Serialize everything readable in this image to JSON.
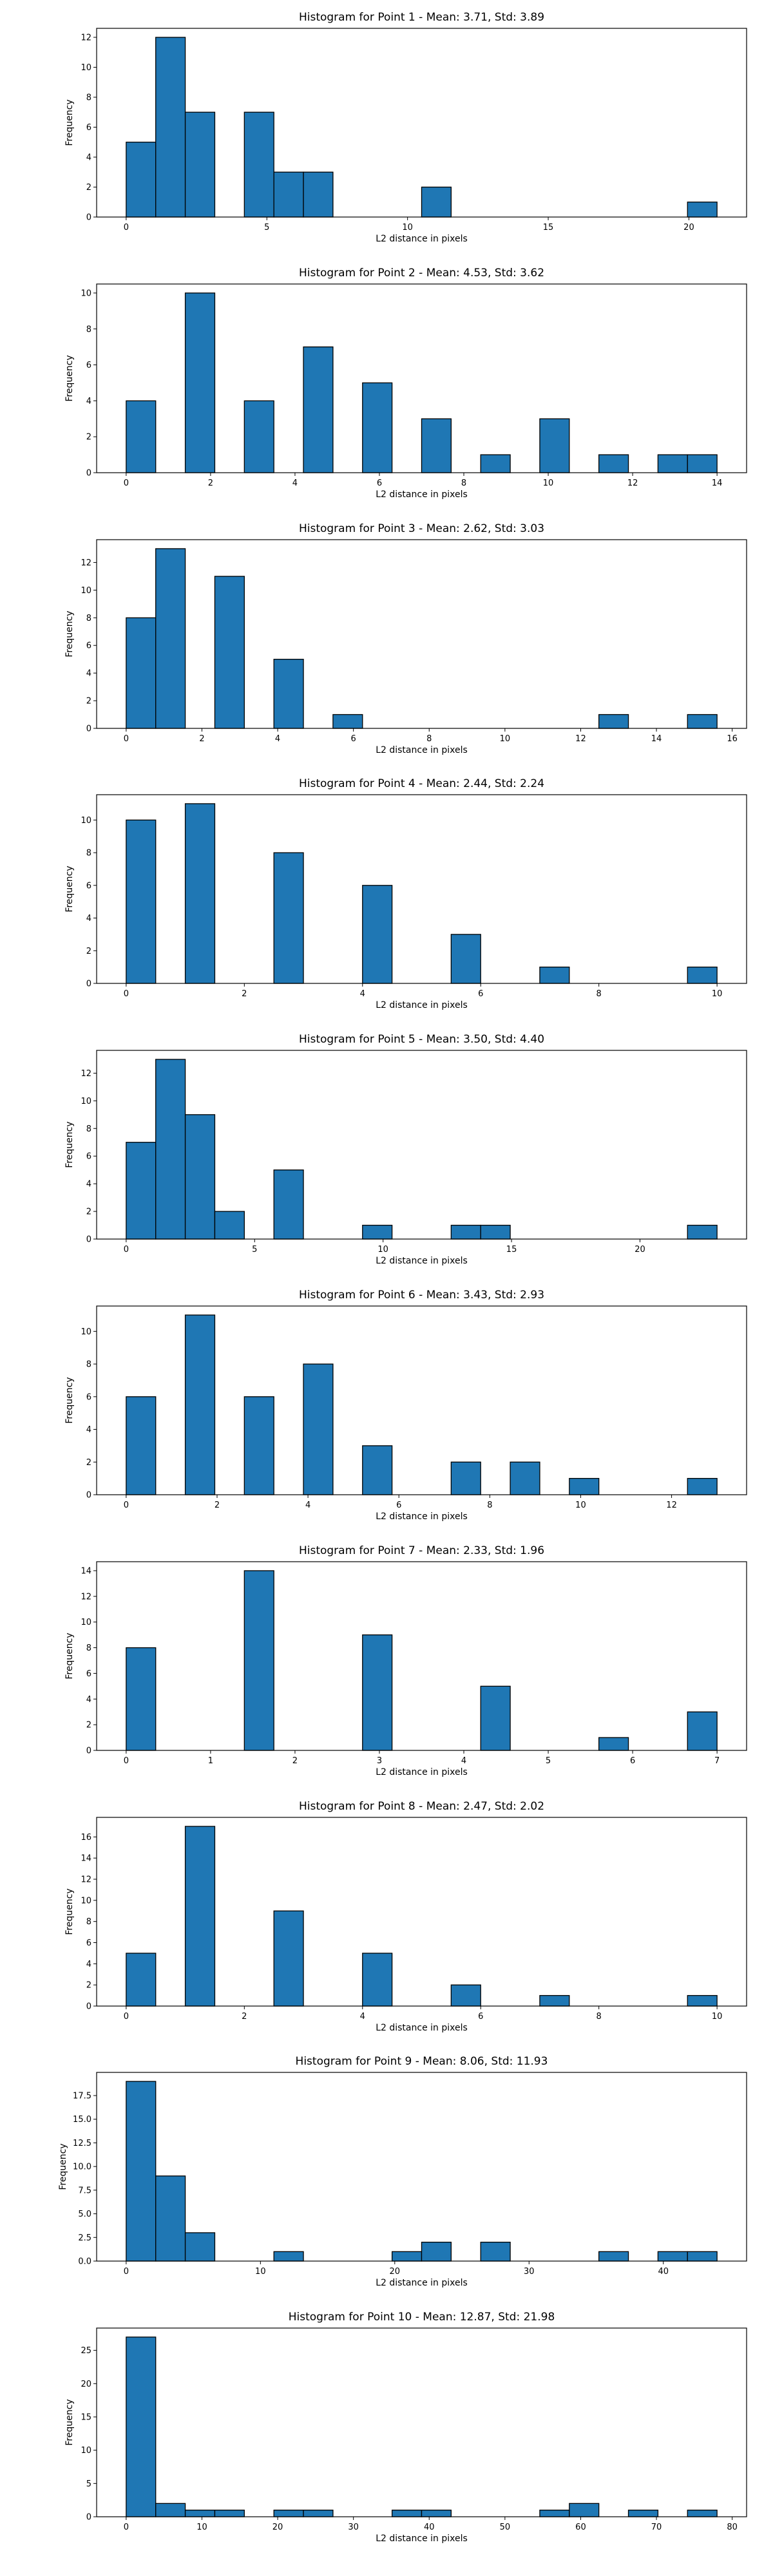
{
  "colors": {
    "bar_fill": "#1f77b4",
    "bar_edge": "#000000",
    "axes": "#000000"
  },
  "chart_data": [
    {
      "type": "bar",
      "title": "Histogram for Point 1 - Mean: 3.71, Std: 3.89",
      "xlabel": "L2 distance in pixels",
      "ylabel": "Frequency",
      "xlim": [
        -1.05,
        22.05
      ],
      "ylim": [
        0,
        12.6
      ],
      "xticks": [
        0,
        5,
        10,
        15,
        20
      ],
      "yticks": [
        0,
        2,
        4,
        6,
        8,
        10,
        12
      ],
      "bins": [
        {
          "x0": 0,
          "x1": 1.05,
          "count": 5
        },
        {
          "x0": 1.05,
          "x1": 2.1,
          "count": 12
        },
        {
          "x0": 2.1,
          "x1": 3.15,
          "count": 7
        },
        {
          "x0": 4.2,
          "x1": 5.25,
          "count": 7
        },
        {
          "x0": 5.25,
          "x1": 6.3,
          "count": 3
        },
        {
          "x0": 6.3,
          "x1": 7.35,
          "count": 3
        },
        {
          "x0": 10.5,
          "x1": 11.55,
          "count": 2
        },
        {
          "x0": 19.95,
          "x1": 21.0,
          "count": 1
        }
      ]
    },
    {
      "type": "bar",
      "title": "Histogram for Point 2 - Mean: 4.53, Std: 3.62",
      "xlabel": "L2 distance in pixels",
      "ylabel": "Frequency",
      "xlim": [
        -0.7,
        14.7
      ],
      "ylim": [
        0,
        10.5
      ],
      "xticks": [
        0,
        2,
        4,
        6,
        8,
        10,
        12,
        14
      ],
      "yticks": [
        0,
        2,
        4,
        6,
        8,
        10
      ],
      "bins": [
        {
          "x0": 0,
          "x1": 0.7,
          "count": 4
        },
        {
          "x0": 1.4,
          "x1": 2.1,
          "count": 10
        },
        {
          "x0": 2.8,
          "x1": 3.5,
          "count": 4
        },
        {
          "x0": 4.2,
          "x1": 4.9,
          "count": 7
        },
        {
          "x0": 5.6,
          "x1": 6.3,
          "count": 5
        },
        {
          "x0": 7.0,
          "x1": 7.7,
          "count": 3
        },
        {
          "x0": 8.4,
          "x1": 9.1,
          "count": 1
        },
        {
          "x0": 9.8,
          "x1": 10.5,
          "count": 3
        },
        {
          "x0": 11.2,
          "x1": 11.9,
          "count": 1
        },
        {
          "x0": 12.6,
          "x1": 13.3,
          "count": 1
        },
        {
          "x0": 13.3,
          "x1": 14.0,
          "count": 1
        }
      ]
    },
    {
      "type": "bar",
      "title": "Histogram for Point 3 - Mean: 2.62, Std: 3.03",
      "xlabel": "L2 distance in pixels",
      "ylabel": "Frequency",
      "xlim": [
        -0.78,
        16.38
      ],
      "ylim": [
        0,
        13.65
      ],
      "xticks": [
        0,
        2,
        4,
        6,
        8,
        10,
        12,
        14,
        16
      ],
      "yticks": [
        0,
        2,
        4,
        6,
        8,
        10,
        12
      ],
      "bins": [
        {
          "x0": 0,
          "x1": 0.78,
          "count": 8
        },
        {
          "x0": 0.78,
          "x1": 1.56,
          "count": 13
        },
        {
          "x0": 2.34,
          "x1": 3.12,
          "count": 11
        },
        {
          "x0": 3.9,
          "x1": 4.68,
          "count": 5
        },
        {
          "x0": 5.46,
          "x1": 6.24,
          "count": 1
        },
        {
          "x0": 12.48,
          "x1": 13.26,
          "count": 1
        },
        {
          "x0": 14.82,
          "x1": 15.6,
          "count": 1
        }
      ]
    },
    {
      "type": "bar",
      "title": "Histogram for Point 4 - Mean: 2.44, Std: 2.24",
      "xlabel": "L2 distance in pixels",
      "ylabel": "Frequency",
      "xlim": [
        -0.5,
        10.5
      ],
      "ylim": [
        0,
        11.55
      ],
      "xticks": [
        0,
        2,
        4,
        6,
        8,
        10
      ],
      "yticks": [
        0,
        2,
        4,
        6,
        8,
        10
      ],
      "bins": [
        {
          "x0": 0,
          "x1": 0.5,
          "count": 10
        },
        {
          "x0": 1.0,
          "x1": 1.5,
          "count": 11
        },
        {
          "x0": 2.5,
          "x1": 3.0,
          "count": 8
        },
        {
          "x0": 4.0,
          "x1": 4.5,
          "count": 6
        },
        {
          "x0": 5.5,
          "x1": 6.0,
          "count": 3
        },
        {
          "x0": 7.0,
          "x1": 7.5,
          "count": 1
        },
        {
          "x0": 9.5,
          "x1": 10.0,
          "count": 1
        }
      ]
    },
    {
      "type": "bar",
      "title": "Histogram for Point 5 - Mean: 3.50, Std: 4.40",
      "xlabel": "L2 distance in pixels",
      "ylabel": "Frequency",
      "xlim": [
        -1.15,
        24.15
      ],
      "ylim": [
        0,
        13.65
      ],
      "xticks": [
        0,
        5,
        10,
        15,
        20
      ],
      "yticks": [
        0,
        2,
        4,
        6,
        8,
        10,
        12
      ],
      "bins": [
        {
          "x0": 0,
          "x1": 1.15,
          "count": 7
        },
        {
          "x0": 1.15,
          "x1": 2.3,
          "count": 13
        },
        {
          "x0": 2.3,
          "x1": 3.45,
          "count": 9
        },
        {
          "x0": 3.45,
          "x1": 4.6,
          "count": 2
        },
        {
          "x0": 5.75,
          "x1": 6.9,
          "count": 5
        },
        {
          "x0": 9.2,
          "x1": 10.35,
          "count": 1
        },
        {
          "x0": 12.65,
          "x1": 13.8,
          "count": 1
        },
        {
          "x0": 13.8,
          "x1": 14.95,
          "count": 1
        },
        {
          "x0": 21.85,
          "x1": 23.0,
          "count": 1
        }
      ]
    },
    {
      "type": "bar",
      "title": "Histogram for Point 6 - Mean: 3.43, Std: 2.93",
      "xlabel": "L2 distance in pixels",
      "ylabel": "Frequency",
      "xlim": [
        -0.65,
        13.65
      ],
      "ylim": [
        0,
        11.55
      ],
      "xticks": [
        0,
        2,
        4,
        6,
        8,
        10,
        12
      ],
      "yticks": [
        0,
        2,
        4,
        6,
        8,
        10
      ],
      "bins": [
        {
          "x0": 0,
          "x1": 0.65,
          "count": 6
        },
        {
          "x0": 1.3,
          "x1": 1.95,
          "count": 11
        },
        {
          "x0": 2.6,
          "x1": 3.25,
          "count": 6
        },
        {
          "x0": 3.9,
          "x1": 4.55,
          "count": 8
        },
        {
          "x0": 5.2,
          "x1": 5.85,
          "count": 3
        },
        {
          "x0": 7.15,
          "x1": 7.8,
          "count": 2
        },
        {
          "x0": 8.45,
          "x1": 9.1,
          "count": 2
        },
        {
          "x0": 9.75,
          "x1": 10.4,
          "count": 1
        },
        {
          "x0": 12.35,
          "x1": 13.0,
          "count": 1
        }
      ]
    },
    {
      "type": "bar",
      "title": "Histogram for Point 7 - Mean: 2.33, Std: 1.96",
      "xlabel": "L2 distance in pixels",
      "ylabel": "Frequency",
      "xlim": [
        -0.35,
        7.35
      ],
      "ylim": [
        0,
        14.7
      ],
      "xticks": [
        0,
        1,
        2,
        3,
        4,
        5,
        6,
        7
      ],
      "yticks": [
        0,
        2,
        4,
        6,
        8,
        10,
        12,
        14
      ],
      "bins": [
        {
          "x0": 0,
          "x1": 0.35,
          "count": 8
        },
        {
          "x0": 1.4,
          "x1": 1.75,
          "count": 14
        },
        {
          "x0": 2.8,
          "x1": 3.15,
          "count": 9
        },
        {
          "x0": 4.2,
          "x1": 4.55,
          "count": 5
        },
        {
          "x0": 5.6,
          "x1": 5.95,
          "count": 1
        },
        {
          "x0": 6.65,
          "x1": 7.0,
          "count": 3
        }
      ]
    },
    {
      "type": "bar",
      "title": "Histogram for Point 8 - Mean: 2.47, Std: 2.02",
      "xlabel": "L2 distance in pixels",
      "ylabel": "Frequency",
      "xlim": [
        -0.5,
        10.5
      ],
      "ylim": [
        0,
        17.85
      ],
      "xticks": [
        0,
        2,
        4,
        6,
        8,
        10
      ],
      "yticks": [
        0,
        2,
        4,
        6,
        8,
        10,
        12,
        14,
        16
      ],
      "bins": [
        {
          "x0": 0,
          "x1": 0.5,
          "count": 5
        },
        {
          "x0": 1.0,
          "x1": 1.5,
          "count": 17
        },
        {
          "x0": 2.5,
          "x1": 3.0,
          "count": 9
        },
        {
          "x0": 4.0,
          "x1": 4.5,
          "count": 5
        },
        {
          "x0": 5.5,
          "x1": 6.0,
          "count": 2
        },
        {
          "x0": 7.0,
          "x1": 7.5,
          "count": 1
        },
        {
          "x0": 9.5,
          "x1": 10.0,
          "count": 1
        }
      ]
    },
    {
      "type": "bar",
      "title": "Histogram for Point 9 - Mean: 8.06, Std: 11.93",
      "xlabel": "L2 distance in pixels",
      "ylabel": "Frequency",
      "xlim": [
        -2.2,
        46.2
      ],
      "ylim": [
        0,
        19.95
      ],
      "xticks": [
        0,
        10,
        20,
        30,
        40
      ],
      "yticks": [
        0.0,
        2.5,
        5.0,
        7.5,
        10.0,
        12.5,
        15.0,
        17.5
      ],
      "ytick_labels": [
        "0.0",
        "2.5",
        "5.0",
        "7.5",
        "10.0",
        "12.5",
        "15.0",
        "17.5"
      ],
      "bins": [
        {
          "x0": 0,
          "x1": 2.2,
          "count": 19
        },
        {
          "x0": 2.2,
          "x1": 4.4,
          "count": 9
        },
        {
          "x0": 4.4,
          "x1": 6.6,
          "count": 3
        },
        {
          "x0": 11.0,
          "x1": 13.2,
          "count": 1
        },
        {
          "x0": 19.8,
          "x1": 22.0,
          "count": 1
        },
        {
          "x0": 22.0,
          "x1": 24.2,
          "count": 2
        },
        {
          "x0": 26.4,
          "x1": 28.6,
          "count": 2
        },
        {
          "x0": 35.2,
          "x1": 37.4,
          "count": 1
        },
        {
          "x0": 39.6,
          "x1": 41.8,
          "count": 1
        },
        {
          "x0": 41.8,
          "x1": 44.0,
          "count": 1
        }
      ]
    },
    {
      "type": "bar",
      "title": "Histogram for Point 10 - Mean: 12.87, Std: 21.98",
      "xlabel": "L2 distance in pixels",
      "ylabel": "Frequency",
      "xlim": [
        -3.9,
        81.9
      ],
      "ylim": [
        0,
        28.35
      ],
      "xticks": [
        0,
        10,
        20,
        30,
        40,
        50,
        60,
        70,
        80
      ],
      "yticks": [
        0,
        5,
        10,
        15,
        20,
        25
      ],
      "bins": [
        {
          "x0": 0,
          "x1": 3.9,
          "count": 27
        },
        {
          "x0": 3.9,
          "x1": 7.8,
          "count": 2
        },
        {
          "x0": 7.8,
          "x1": 11.7,
          "count": 1
        },
        {
          "x0": 11.7,
          "x1": 15.6,
          "count": 1
        },
        {
          "x0": 19.5,
          "x1": 23.4,
          "count": 1
        },
        {
          "x0": 23.4,
          "x1": 27.3,
          "count": 1
        },
        {
          "x0": 35.1,
          "x1": 39.0,
          "count": 1
        },
        {
          "x0": 39.0,
          "x1": 42.9,
          "count": 1
        },
        {
          "x0": 54.6,
          "x1": 58.5,
          "count": 1
        },
        {
          "x0": 58.5,
          "x1": 62.4,
          "count": 2
        },
        {
          "x0": 66.3,
          "x1": 70.2,
          "count": 1
        },
        {
          "x0": 74.1,
          "x1": 78.0,
          "count": 1
        }
      ]
    }
  ]
}
